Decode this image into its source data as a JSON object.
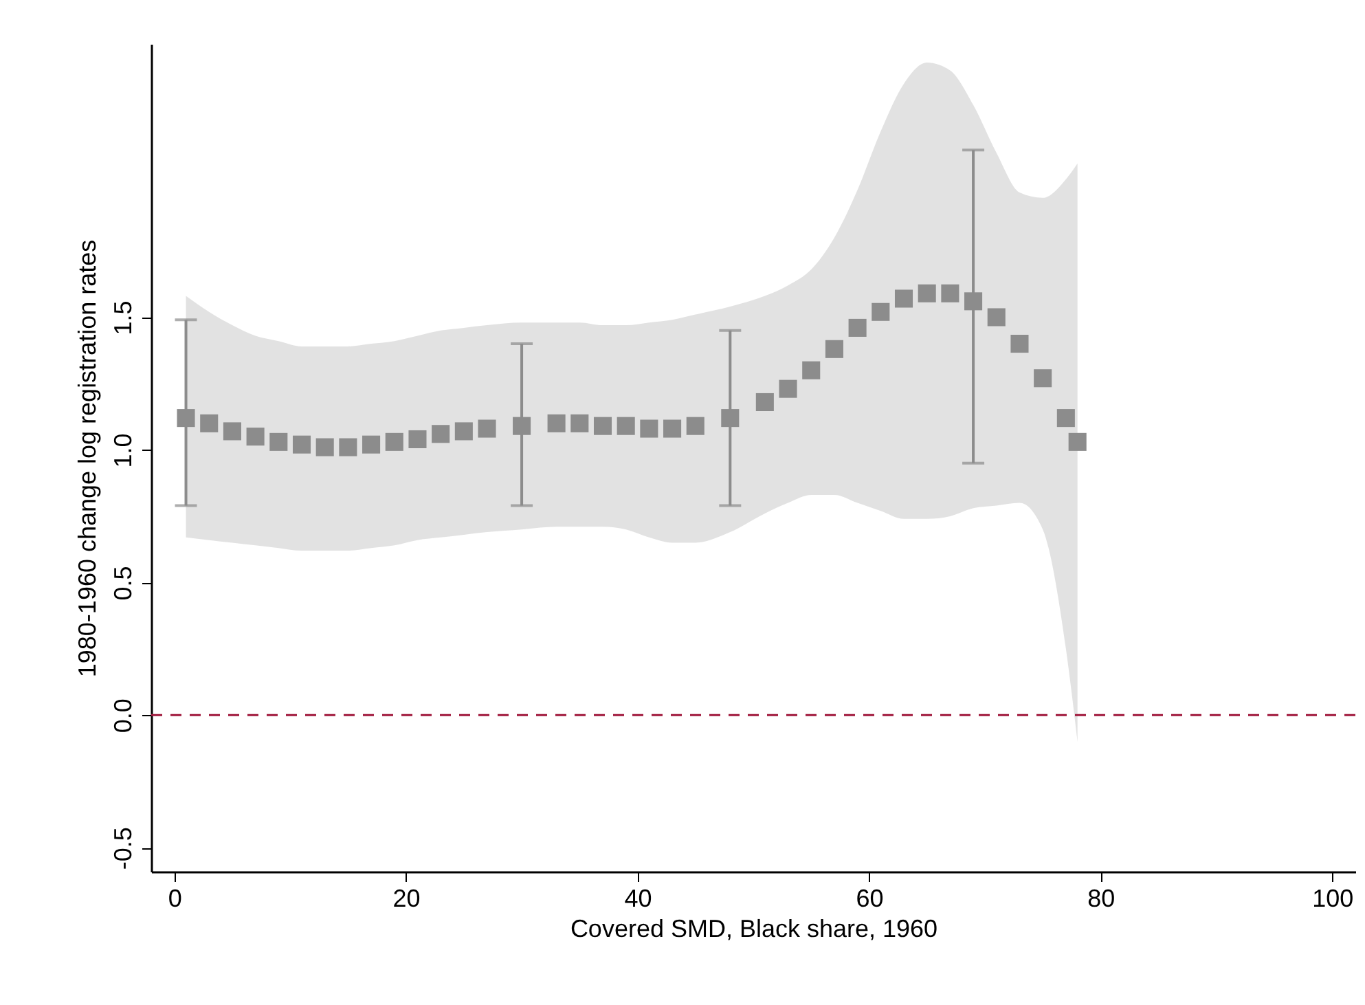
{
  "chart_data": {
    "type": "scatter",
    "xlabel": "Covered SMD, Black share, 1960",
    "ylabel": "1980-1960 change log registration rates",
    "xlim": [
      -2,
      102
    ],
    "ylim": [
      -0.59,
      2.53
    ],
    "xticks": [
      0,
      20,
      40,
      60,
      80,
      100
    ],
    "yticks": [
      {
        "value": -0.5,
        "label": "-0.5"
      },
      {
        "value": 0,
        "label": "0.0"
      },
      {
        "value": 0.5,
        "label": "0.5"
      },
      {
        "value": 1,
        "label": "1.0"
      },
      {
        "value": 1.5,
        "label": "1.5"
      }
    ],
    "marker": "square",
    "series": [
      {
        "color": "#8c8c8c",
        "x": [
          1,
          3,
          5,
          7,
          9,
          11,
          13,
          15,
          17,
          19,
          21,
          23,
          25,
          27,
          30,
          33,
          35,
          37,
          39,
          41,
          43,
          45,
          48,
          51,
          53,
          55,
          57,
          59,
          61,
          63,
          65,
          67,
          69,
          71,
          73,
          75,
          77,
          78
        ],
        "values": [
          1.12,
          1.1,
          1.07,
          1.05,
          1.03,
          1.02,
          1.01,
          1.01,
          1.02,
          1.03,
          1.04,
          1.06,
          1.07,
          1.08,
          1.09,
          1.1,
          1.1,
          1.09,
          1.09,
          1.08,
          1.08,
          1.09,
          1.12,
          1.18,
          1.23,
          1.3,
          1.38,
          1.46,
          1.52,
          1.57,
          1.59,
          1.59,
          1.56,
          1.5,
          1.4,
          1.27,
          1.12,
          1.03
        ],
        "upper": [
          1.58,
          1.52,
          1.47,
          1.43,
          1.41,
          1.39,
          1.39,
          1.39,
          1.4,
          1.41,
          1.43,
          1.45,
          1.46,
          1.47,
          1.48,
          1.48,
          1.48,
          1.47,
          1.47,
          1.48,
          1.49,
          1.51,
          1.54,
          1.58,
          1.62,
          1.68,
          1.8,
          1.98,
          2.2,
          2.38,
          2.46,
          2.43,
          2.3,
          2.12,
          1.97,
          1.95,
          2.02,
          2.08
        ],
        "lower": [
          0.67,
          0.66,
          0.65,
          0.64,
          0.63,
          0.62,
          0.62,
          0.62,
          0.63,
          0.64,
          0.66,
          0.67,
          0.68,
          0.69,
          0.7,
          0.71,
          0.71,
          0.71,
          0.7,
          0.67,
          0.65,
          0.65,
          0.69,
          0.76,
          0.8,
          0.83,
          0.83,
          0.8,
          0.77,
          0.74,
          0.74,
          0.75,
          0.78,
          0.79,
          0.8,
          0.7,
          0.25,
          -0.1
        ],
        "errors": [
          [
            0.79,
            1.49
          ],
          null,
          null,
          null,
          null,
          null,
          null,
          null,
          null,
          null,
          null,
          null,
          null,
          null,
          [
            0.79,
            1.4
          ],
          null,
          null,
          null,
          null,
          null,
          null,
          null,
          [
            0.79,
            1.45
          ],
          null,
          null,
          null,
          null,
          null,
          null,
          null,
          null,
          null,
          [
            0.95,
            2.13
          ],
          null,
          null,
          null,
          null,
          null
        ]
      }
    ],
    "ref_lines": [
      {
        "axis": "y",
        "value": 0,
        "color": "#a0183c",
        "line_style": "dashed"
      }
    ]
  }
}
